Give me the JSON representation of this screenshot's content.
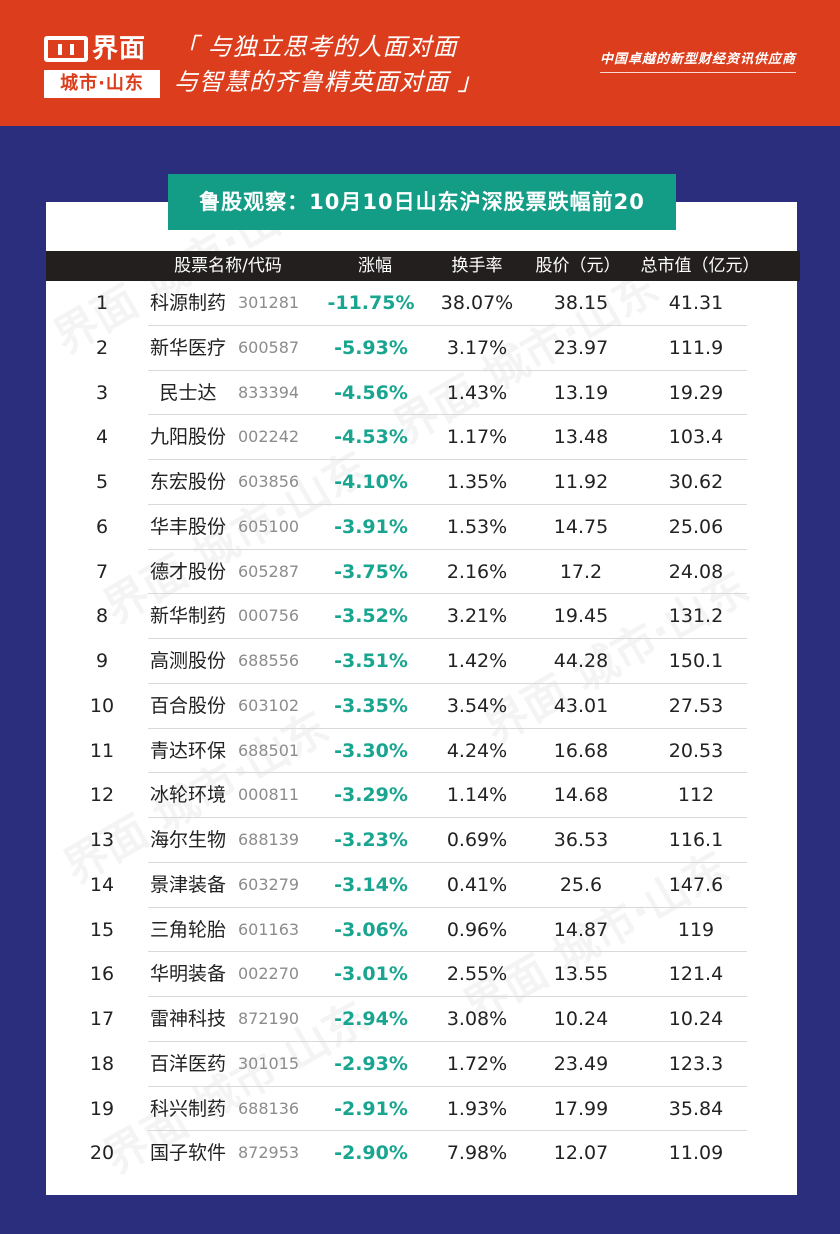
{
  "header": {
    "brand": "界面",
    "sub_brand": "城市·山东",
    "slogan_line1": "「 与独立思考的人面对面",
    "slogan_line2": "与智慧的齐鲁精英面对面 」",
    "tagline": "中国卓越的新型财经资讯供应商"
  },
  "title": "鲁股观察：10月10日山东沪深股票跌幅前20",
  "watermark": "界面 城市·山东",
  "table": {
    "headers": [
      "股票名称/代码",
      "涨幅",
      "换手率",
      "股价（元）",
      "总市值（亿元）"
    ],
    "rows": [
      {
        "rank": "1",
        "name": "科源制药",
        "code": "301281",
        "change": "-11.75%",
        "turnover": "38.07%",
        "price": "38.15",
        "cap": "41.31"
      },
      {
        "rank": "2",
        "name": "新华医疗",
        "code": "600587",
        "change": "-5.93%",
        "turnover": "3.17%",
        "price": "23.97",
        "cap": "111.9"
      },
      {
        "rank": "3",
        "name": "民士达",
        "code": "833394",
        "change": "-4.56%",
        "turnover": "1.43%",
        "price": "13.19",
        "cap": "19.29"
      },
      {
        "rank": "4",
        "name": "九阳股份",
        "code": "002242",
        "change": "-4.53%",
        "turnover": "1.17%",
        "price": "13.48",
        "cap": "103.4"
      },
      {
        "rank": "5",
        "name": "东宏股份",
        "code": "603856",
        "change": "-4.10%",
        "turnover": "1.35%",
        "price": "11.92",
        "cap": "30.62"
      },
      {
        "rank": "6",
        "name": "华丰股份",
        "code": "605100",
        "change": "-3.91%",
        "turnover": "1.53%",
        "price": "14.75",
        "cap": "25.06"
      },
      {
        "rank": "7",
        "name": "德才股份",
        "code": "605287",
        "change": "-3.75%",
        "turnover": "2.16%",
        "price": "17.2",
        "cap": "24.08"
      },
      {
        "rank": "8",
        "name": "新华制药",
        "code": "000756",
        "change": "-3.52%",
        "turnover": "3.21%",
        "price": "19.45",
        "cap": "131.2"
      },
      {
        "rank": "9",
        "name": "高测股份",
        "code": "688556",
        "change": "-3.51%",
        "turnover": "1.42%",
        "price": "44.28",
        "cap": "150.1"
      },
      {
        "rank": "10",
        "name": "百合股份",
        "code": "603102",
        "change": "-3.35%",
        "turnover": "3.54%",
        "price": "43.01",
        "cap": "27.53"
      },
      {
        "rank": "11",
        "name": "青达环保",
        "code": "688501",
        "change": "-3.30%",
        "turnover": "4.24%",
        "price": "16.68",
        "cap": "20.53"
      },
      {
        "rank": "12",
        "name": "冰轮环境",
        "code": "000811",
        "change": "-3.29%",
        "turnover": "1.14%",
        "price": "14.68",
        "cap": "112"
      },
      {
        "rank": "13",
        "name": "海尔生物",
        "code": "688139",
        "change": "-3.23%",
        "turnover": "0.69%",
        "price": "36.53",
        "cap": "116.1"
      },
      {
        "rank": "14",
        "name": "景津装备",
        "code": "603279",
        "change": "-3.14%",
        "turnover": "0.41%",
        "price": "25.6",
        "cap": "147.6"
      },
      {
        "rank": "15",
        "name": "三角轮胎",
        "code": "601163",
        "change": "-3.06%",
        "turnover": "0.96%",
        "price": "14.87",
        "cap": "119"
      },
      {
        "rank": "16",
        "name": "华明装备",
        "code": "002270",
        "change": "-3.01%",
        "turnover": "2.55%",
        "price": "13.55",
        "cap": "121.4"
      },
      {
        "rank": "17",
        "name": "雷神科技",
        "code": "872190",
        "change": "-2.94%",
        "turnover": "3.08%",
        "price": "10.24",
        "cap": "10.24"
      },
      {
        "rank": "18",
        "name": "百洋医药",
        "code": "301015",
        "change": "-2.93%",
        "turnover": "1.72%",
        "price": "23.49",
        "cap": "123.3"
      },
      {
        "rank": "19",
        "name": "科兴制药",
        "code": "688136",
        "change": "-2.91%",
        "turnover": "1.93%",
        "price": "17.99",
        "cap": "35.84"
      },
      {
        "rank": "20",
        "name": "国子软件",
        "code": "872953",
        "change": "-2.90%",
        "turnover": "7.98%",
        "price": "12.07",
        "cap": "11.09"
      }
    ]
  },
  "colors": {
    "header_bg": "#dc3d1c",
    "page_bg": "#2a2e7c",
    "title_bg": "#139c86",
    "table_header_bg": "#231f1f",
    "change_text": "#19a58f"
  }
}
